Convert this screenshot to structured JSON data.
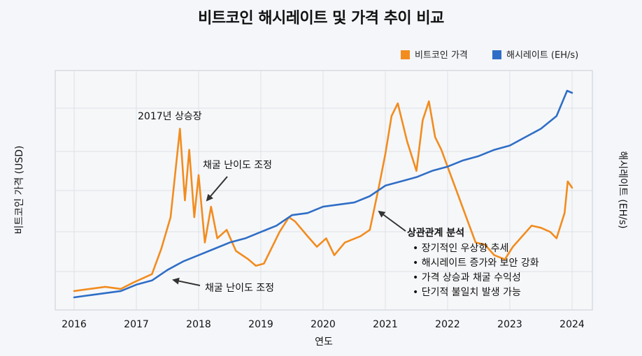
{
  "chart_data": {
    "type": "line",
    "title": "비트코인 해시레이트 및 가격 추이 비교",
    "xlabel": "연도",
    "ylabel_left": "비트코인 가격 (USD)",
    "ylabel_right": "해시레이트 (EH/s)",
    "x_ticks": [
      "2016",
      "2017",
      "2018",
      "2019",
      "2020",
      "2021",
      "2022",
      "2023",
      "2024"
    ],
    "x_range": [
      2016,
      2024
    ],
    "y_left_relative_range": [
      0,
      100
    ],
    "y_right_relative_range": [
      0,
      100
    ],
    "grid": true,
    "legend_position": "top-right",
    "series": [
      {
        "name": "비트코인 가격",
        "color": "#f28c1e",
        "axis": "left",
        "points": [
          [
            2016.0,
            5
          ],
          [
            2016.25,
            6
          ],
          [
            2016.5,
            7
          ],
          [
            2016.75,
            6
          ],
          [
            2016.95,
            9
          ],
          [
            2017.25,
            13
          ],
          [
            2017.4,
            25
          ],
          [
            2017.55,
            40
          ],
          [
            2017.7,
            82
          ],
          [
            2017.78,
            48
          ],
          [
            2017.85,
            72
          ],
          [
            2017.93,
            40
          ],
          [
            2018.0,
            60
          ],
          [
            2018.1,
            28
          ],
          [
            2018.2,
            45
          ],
          [
            2018.3,
            30
          ],
          [
            2018.45,
            34
          ],
          [
            2018.6,
            24
          ],
          [
            2018.8,
            20
          ],
          [
            2018.92,
            17
          ],
          [
            2019.05,
            18
          ],
          [
            2019.3,
            33
          ],
          [
            2019.45,
            40
          ],
          [
            2019.55,
            38
          ],
          [
            2019.75,
            31
          ],
          [
            2019.9,
            26
          ],
          [
            2020.05,
            30
          ],
          [
            2020.18,
            22
          ],
          [
            2020.35,
            28
          ],
          [
            2020.6,
            31
          ],
          [
            2020.75,
            34
          ],
          [
            2020.9,
            55
          ],
          [
            2021.0,
            70
          ],
          [
            2021.1,
            88
          ],
          [
            2021.2,
            94
          ],
          [
            2021.35,
            76
          ],
          [
            2021.5,
            62
          ],
          [
            2021.6,
            86
          ],
          [
            2021.7,
            95
          ],
          [
            2021.8,
            78
          ],
          [
            2021.9,
            72
          ],
          [
            2022.05,
            60
          ],
          [
            2022.15,
            52
          ],
          [
            2022.3,
            40
          ],
          [
            2022.45,
            28
          ],
          [
            2022.6,
            27
          ],
          [
            2022.75,
            22
          ],
          [
            2022.92,
            20
          ],
          [
            2023.05,
            26
          ],
          [
            2023.2,
            31
          ],
          [
            2023.35,
            36
          ],
          [
            2023.5,
            35
          ],
          [
            2023.65,
            33
          ],
          [
            2023.75,
            30
          ],
          [
            2023.88,
            42
          ],
          [
            2023.93,
            57
          ],
          [
            2024.0,
            54
          ]
        ]
      },
      {
        "name": "해시레이트 (EH/s)",
        "color": "#2f6ec6",
        "axis": "right",
        "points": [
          [
            2016.0,
            2
          ],
          [
            2016.25,
            3
          ],
          [
            2016.5,
            4
          ],
          [
            2016.75,
            5
          ],
          [
            2017.0,
            8
          ],
          [
            2017.25,
            10
          ],
          [
            2017.5,
            15
          ],
          [
            2017.75,
            19
          ],
          [
            2018.0,
            22
          ],
          [
            2018.25,
            25
          ],
          [
            2018.5,
            28
          ],
          [
            2018.75,
            30
          ],
          [
            2019.0,
            33
          ],
          [
            2019.25,
            36
          ],
          [
            2019.5,
            41
          ],
          [
            2019.75,
            42
          ],
          [
            2020.0,
            45
          ],
          [
            2020.25,
            46
          ],
          [
            2020.5,
            47
          ],
          [
            2020.75,
            50
          ],
          [
            2021.0,
            55
          ],
          [
            2021.25,
            57
          ],
          [
            2021.5,
            59
          ],
          [
            2021.75,
            62
          ],
          [
            2022.0,
            64
          ],
          [
            2022.25,
            67
          ],
          [
            2022.5,
            69
          ],
          [
            2022.75,
            72
          ],
          [
            2023.0,
            74
          ],
          [
            2023.25,
            78
          ],
          [
            2023.5,
            82
          ],
          [
            2023.75,
            88
          ],
          [
            2023.92,
            100
          ],
          [
            2024.0,
            99
          ]
        ]
      }
    ],
    "annotations": [
      {
        "label": "2017년 상승장"
      },
      {
        "label": "채굴 난이도 조정"
      },
      {
        "label": "채굴 난이도 조정"
      },
      {
        "label": "상관관계 분석"
      },
      {
        "label": "• 장기적인 우상향 추세"
      },
      {
        "label": "• 해시레이트 증가와 보안 강화"
      },
      {
        "label": "• 가격 상승과 채굴 수익성"
      },
      {
        "label": "• 단기적 불일치 발생 가능"
      }
    ]
  }
}
